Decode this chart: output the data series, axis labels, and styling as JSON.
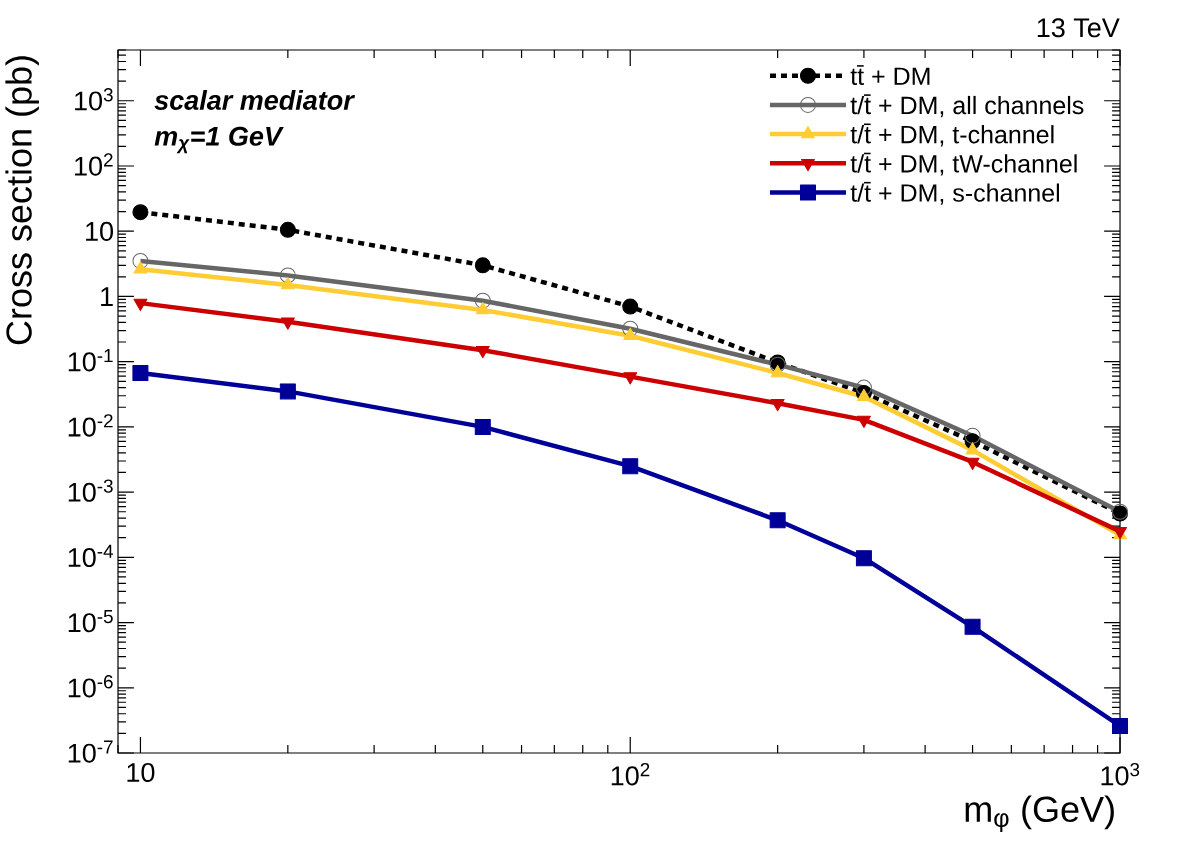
{
  "chart_data": {
    "type": "line",
    "xlabel": "m$_{φ}$ (GeV)",
    "ylabel": "Cross section (pb)",
    "annotations": [
      "13 TeV",
      "scalar mediator",
      "m$_{χ}$=1 GeV"
    ],
    "x": [
      10,
      20,
      50,
      100,
      200,
      300,
      500,
      1000
    ],
    "series": [
      {
        "name": "tt̄ + DM",
        "color": "#000000",
        "marker": "circle",
        "line_style": "dotted",
        "values": [
          19.6,
          10.5,
          3.0,
          0.7,
          0.097,
          0.033,
          0.006,
          0.00047
        ]
      },
      {
        "name": "t/t̄ + DM, all channels",
        "color": "#666666",
        "marker": "circle-open",
        "line_style": "solid",
        "values": [
          3.5,
          2.1,
          0.86,
          0.32,
          0.09,
          0.04,
          0.0073,
          0.0005
        ]
      },
      {
        "name": "t/t̄ + DM, t-channel",
        "color": "#ffcc33",
        "marker": "triangle",
        "line_style": "solid",
        "values": [
          2.6,
          1.5,
          0.62,
          0.25,
          0.067,
          0.029,
          0.0044,
          0.00022
        ]
      },
      {
        "name": "t/t̄ + DM, tW-channel",
        "color": "#cc0000",
        "marker": "triangle-down",
        "line_style": "solid",
        "values": [
          0.79,
          0.41,
          0.15,
          0.059,
          0.023,
          0.0128,
          0.0029,
          0.00025
        ]
      },
      {
        "name": "t/t̄ + DM, s-channel",
        "color": "#000099",
        "marker": "square",
        "line_style": "solid",
        "values": [
          0.067,
          0.035,
          0.01,
          0.0025,
          0.00037,
          9.7e-05,
          8.6e-06,
          2.6e-07
        ]
      }
    ],
    "log": "xy",
    "xlim": [
      9,
      1000
    ],
    "ylim": [
      1e-07,
      6000
    ],
    "xticks": [
      10,
      {
        "value": 100,
        "label": "10$^{2}$"
      },
      {
        "value": 1000,
        "label": "10$^{3}$"
      }
    ],
    "yticks": [
      {
        "value": 1e-07,
        "label": "10$^{-7}$"
      },
      {
        "value": 1e-06,
        "label": "10$^{-6}$"
      },
      {
        "value": 1e-05,
        "label": "10$^{-5}$"
      },
      {
        "value": 0.0001,
        "label": "10$^{-4}$"
      },
      {
        "value": 0.001,
        "label": "10$^{-3}$"
      },
      {
        "value": 0.01,
        "label": "10$^{-2}$"
      },
      {
        "value": 0.1,
        "label": "10$^{-1}$"
      },
      1,
      10,
      {
        "value": 100,
        "label": "10$^{2}$"
      },
      {
        "value": 1000,
        "label": "10$^{3}$"
      }
    ],
    "grid": false,
    "legend": "top right"
  }
}
